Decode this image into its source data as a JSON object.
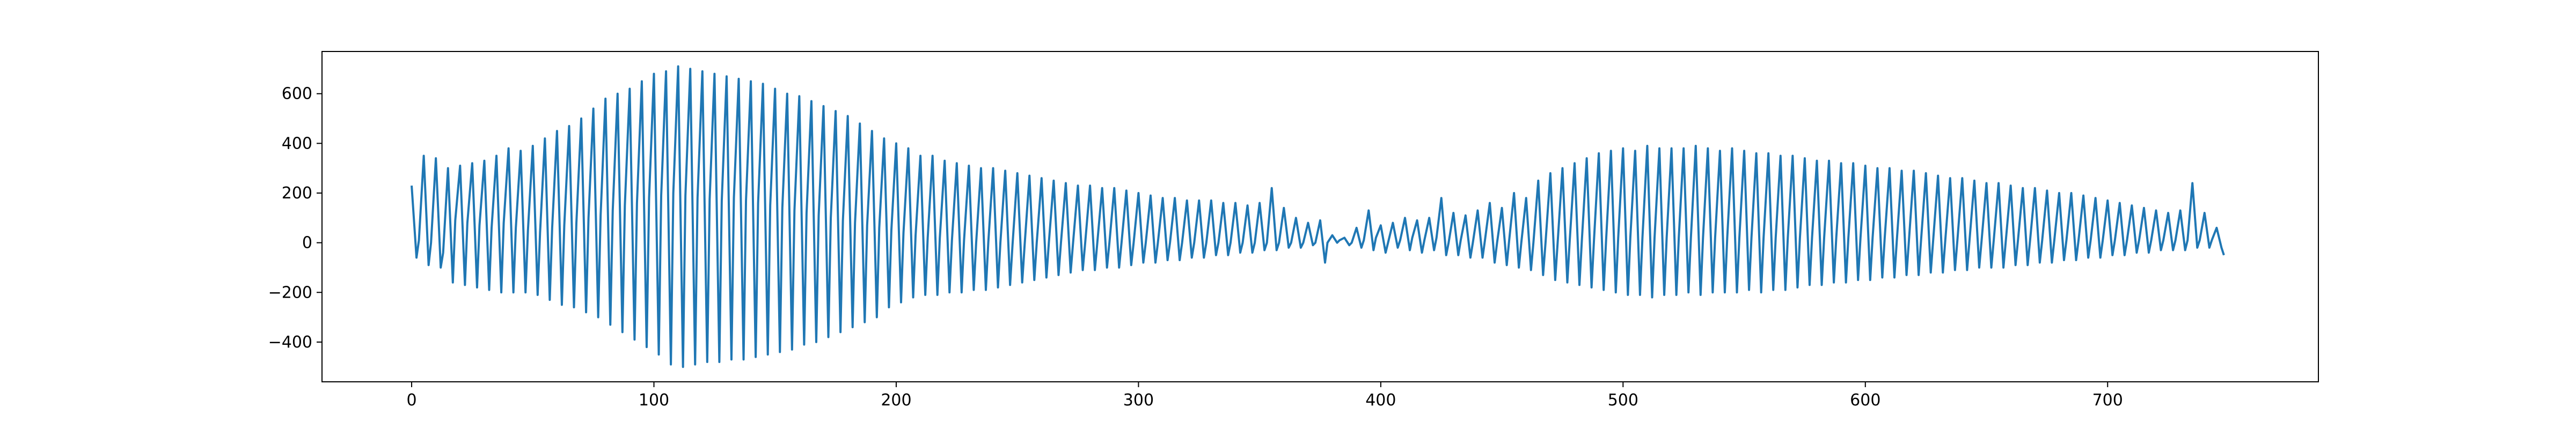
{
  "chart_data": {
    "type": "line",
    "color": "#1f77b4",
    "xlim": [
      -37,
      787
    ],
    "ylim": [
      -560,
      770
    ],
    "xticks": [
      0,
      100,
      200,
      300,
      400,
      500,
      600,
      700
    ],
    "yticks": [
      {
        "value": -400,
        "label": "−400"
      },
      {
        "value": -200,
        "label": "−200"
      },
      0,
      200,
      400,
      600
    ],
    "x": [
      0,
      2,
      3,
      5,
      7,
      8,
      10,
      12,
      13,
      15,
      17,
      18,
      20,
      22,
      23,
      25,
      27,
      28,
      30,
      32,
      33,
      35,
      37,
      38,
      40,
      42,
      43,
      45,
      47,
      48,
      50,
      52,
      53,
      55,
      57,
      58,
      60,
      62,
      63,
      65,
      67,
      68,
      70,
      72,
      73,
      75,
      77,
      78,
      80,
      82,
      83,
      85,
      87,
      88,
      90,
      92,
      93,
      95,
      97,
      98,
      100,
      102,
      103,
      105,
      107,
      108,
      110,
      112,
      113,
      115,
      117,
      118,
      120,
      122,
      123,
      125,
      127,
      128,
      130,
      132,
      133,
      135,
      137,
      138,
      140,
      142,
      143,
      145,
      147,
      148,
      150,
      152,
      153,
      155,
      157,
      158,
      160,
      162,
      163,
      165,
      167,
      168,
      170,
      172,
      173,
      175,
      177,
      178,
      180,
      182,
      183,
      185,
      187,
      188,
      190,
      192,
      193,
      195,
      197,
      198,
      200,
      202,
      203,
      205,
      207,
      208,
      210,
      212,
      213,
      215,
      217,
      218,
      220,
      222,
      223,
      225,
      227,
      228,
      230,
      232,
      233,
      235,
      237,
      238,
      240,
      242,
      243,
      245,
      247,
      248,
      250,
      252,
      253,
      255,
      257,
      258,
      260,
      262,
      263,
      265,
      267,
      268,
      270,
      272,
      273,
      275,
      277,
      278,
      280,
      282,
      283,
      285,
      287,
      288,
      290,
      292,
      293,
      295,
      297,
      298,
      300,
      302,
      303,
      305,
      307,
      308,
      310,
      312,
      313,
      315,
      317,
      318,
      320,
      322,
      323,
      325,
      327,
      328,
      330,
      332,
      333,
      335,
      337,
      338,
      340,
      342,
      343,
      345,
      347,
      348,
      350,
      352,
      353,
      355,
      357,
      358,
      360,
      362,
      363,
      365,
      367,
      368,
      370,
      372,
      373,
      375,
      377,
      378,
      380,
      382,
      383,
      385,
      387,
      388,
      390,
      392,
      393,
      395,
      397,
      398,
      400,
      402,
      403,
      405,
      407,
      408,
      410,
      412,
      413,
      415,
      417,
      418,
      420,
      422,
      423,
      425,
      427,
      428,
      430,
      432,
      433,
      435,
      437,
      438,
      440,
      442,
      443,
      445,
      447,
      448,
      450,
      452,
      453,
      455,
      457,
      458,
      460,
      462,
      463,
      465,
      467,
      468,
      470,
      472,
      473,
      475,
      477,
      478,
      480,
      482,
      483,
      485,
      487,
      488,
      490,
      492,
      493,
      495,
      497,
      498,
      500,
      502,
      503,
      505,
      507,
      508,
      510,
      512,
      513,
      515,
      517,
      518,
      520,
      522,
      523,
      525,
      527,
      528,
      530,
      532,
      533,
      535,
      537,
      538,
      540,
      542,
      543,
      545,
      547,
      548,
      550,
      552,
      553,
      555,
      557,
      558,
      560,
      562,
      563,
      565,
      567,
      568,
      570,
      572,
      573,
      575,
      577,
      578,
      580,
      582,
      583,
      585,
      587,
      588,
      590,
      592,
      593,
      595,
      597,
      598,
      600,
      602,
      603,
      605,
      607,
      608,
      610,
      612,
      613,
      615,
      617,
      618,
      620,
      622,
      623,
      625,
      627,
      628,
      630,
      632,
      633,
      635,
      637,
      638,
      640,
      642,
      643,
      645,
      647,
      648,
      650,
      652,
      653,
      655,
      657,
      658,
      660,
      662,
      663,
      665,
      667,
      668,
      670,
      672,
      673,
      675,
      677,
      678,
      680,
      682,
      683,
      685,
      687,
      688,
      690,
      692,
      693,
      695,
      697,
      698,
      700,
      702,
      703,
      705,
      707,
      708,
      710,
      712,
      713,
      715,
      717,
      718,
      720,
      722,
      723,
      725,
      727,
      728,
      730,
      732,
      733,
      735,
      737,
      738,
      740,
      742,
      743,
      745,
      747,
      748
    ],
    "values": [
      230,
      -60,
      10,
      350,
      -90,
      0,
      340,
      -100,
      -40,
      300,
      -160,
      90,
      310,
      -170,
      80,
      320,
      -180,
      70,
      330,
      -190,
      60,
      350,
      -200,
      80,
      380,
      -200,
      60,
      370,
      -200,
      50,
      390,
      -210,
      40,
      420,
      -230,
      60,
      450,
      -250,
      70,
      470,
      -260,
      80,
      500,
      -280,
      100,
      540,
      -300,
      110,
      580,
      -330,
      130,
      600,
      -360,
      150,
      620,
      -390,
      160,
      650,
      -420,
      180,
      680,
      -450,
      190,
      690,
      -490,
      200,
      710,
      -500,
      190,
      700,
      -490,
      180,
      690,
      -480,
      175,
      680,
      -480,
      170,
      670,
      -470,
      180,
      660,
      -470,
      170,
      650,
      -460,
      160,
      640,
      -450,
      150,
      620,
      -440,
      140,
      600,
      -430,
      130,
      590,
      -410,
      120,
      570,
      -400,
      110,
      550,
      -380,
      100,
      530,
      -360,
      90,
      510,
      -340,
      80,
      480,
      -320,
      70,
      450,
      -300,
      60,
      420,
      -260,
      50,
      400,
      -240,
      40,
      380,
      -220,
      30,
      350,
      -210,
      20,
      350,
      -210,
      20,
      330,
      -200,
      10,
      320,
      -200,
      10,
      310,
      -190,
      0,
      300,
      -190,
      0,
      300,
      -180,
      0,
      290,
      -170,
      -10,
      280,
      -160,
      -10,
      270,
      -150,
      0,
      260,
      -140,
      0,
      250,
      -130,
      0,
      240,
      -120,
      0,
      230,
      -110,
      0,
      230,
      -110,
      0,
      220,
      -100,
      0,
      220,
      -100,
      0,
      210,
      -90,
      0,
      200,
      -80,
      0,
      190,
      -80,
      0,
      180,
      -70,
      0,
      180,
      -70,
      0,
      170,
      -60,
      0,
      170,
      -60,
      0,
      170,
      -50,
      0,
      160,
      -50,
      0,
      160,
      -40,
      0,
      150,
      -40,
      0,
      160,
      -30,
      0,
      220,
      -30,
      0,
      140,
      -20,
      0,
      100,
      -20,
      0,
      80,
      -10,
      0,
      90,
      -80,
      0,
      30,
      0,
      10,
      20,
      -10,
      0,
      60,
      -20,
      10,
      130,
      -30,
      20,
      70,
      -40,
      0,
      80,
      -20,
      10,
      100,
      -30,
      20,
      90,
      -40,
      10,
      100,
      -30,
      20,
      180,
      -50,
      0,
      120,
      -50,
      10,
      110,
      -60,
      0,
      130,
      -60,
      10,
      160,
      -80,
      0,
      140,
      -90,
      10,
      200,
      -100,
      0,
      180,
      -110,
      0,
      250,
      -130,
      0,
      280,
      -150,
      0,
      300,
      -160,
      10,
      320,
      -170,
      10,
      340,
      -180,
      10,
      360,
      -190,
      10,
      370,
      -200,
      20,
      380,
      -210,
      20,
      370,
      -210,
      20,
      390,
      -220,
      20,
      380,
      -210,
      20,
      380,
      -210,
      20,
      380,
      -200,
      20,
      390,
      -210,
      20,
      380,
      -200,
      20,
      370,
      -200,
      20,
      380,
      -200,
      20,
      370,
      -190,
      20,
      360,
      -200,
      20,
      360,
      -190,
      20,
      350,
      -190,
      20,
      350,
      -180,
      20,
      340,
      -170,
      20,
      330,
      -170,
      20,
      330,
      -160,
      20,
      320,
      -160,
      20,
      320,
      -150,
      20,
      310,
      -150,
      20,
      300,
      -140,
      20,
      300,
      -140,
      10,
      290,
      -130,
      10,
      290,
      -130,
      10,
      280,
      -120,
      10,
      270,
      -120,
      10,
      260,
      -110,
      10,
      260,
      -110,
      10,
      250,
      -100,
      10,
      240,
      -100,
      10,
      240,
      -100,
      10,
      230,
      -90,
      10,
      220,
      -90,
      10,
      220,
      -80,
      10,
      210,
      -80,
      10,
      200,
      -70,
      10,
      200,
      -70,
      10,
      190,
      -60,
      10,
      180,
      -60,
      10,
      170,
      -50,
      10,
      160,
      -50,
      10,
      150,
      -40,
      10,
      140,
      -40,
      10,
      130,
      -30,
      10,
      120,
      -30,
      10,
      130,
      -30,
      10,
      240,
      -20,
      10,
      120,
      -20,
      10,
      60,
      -20,
      -50
    ]
  }
}
